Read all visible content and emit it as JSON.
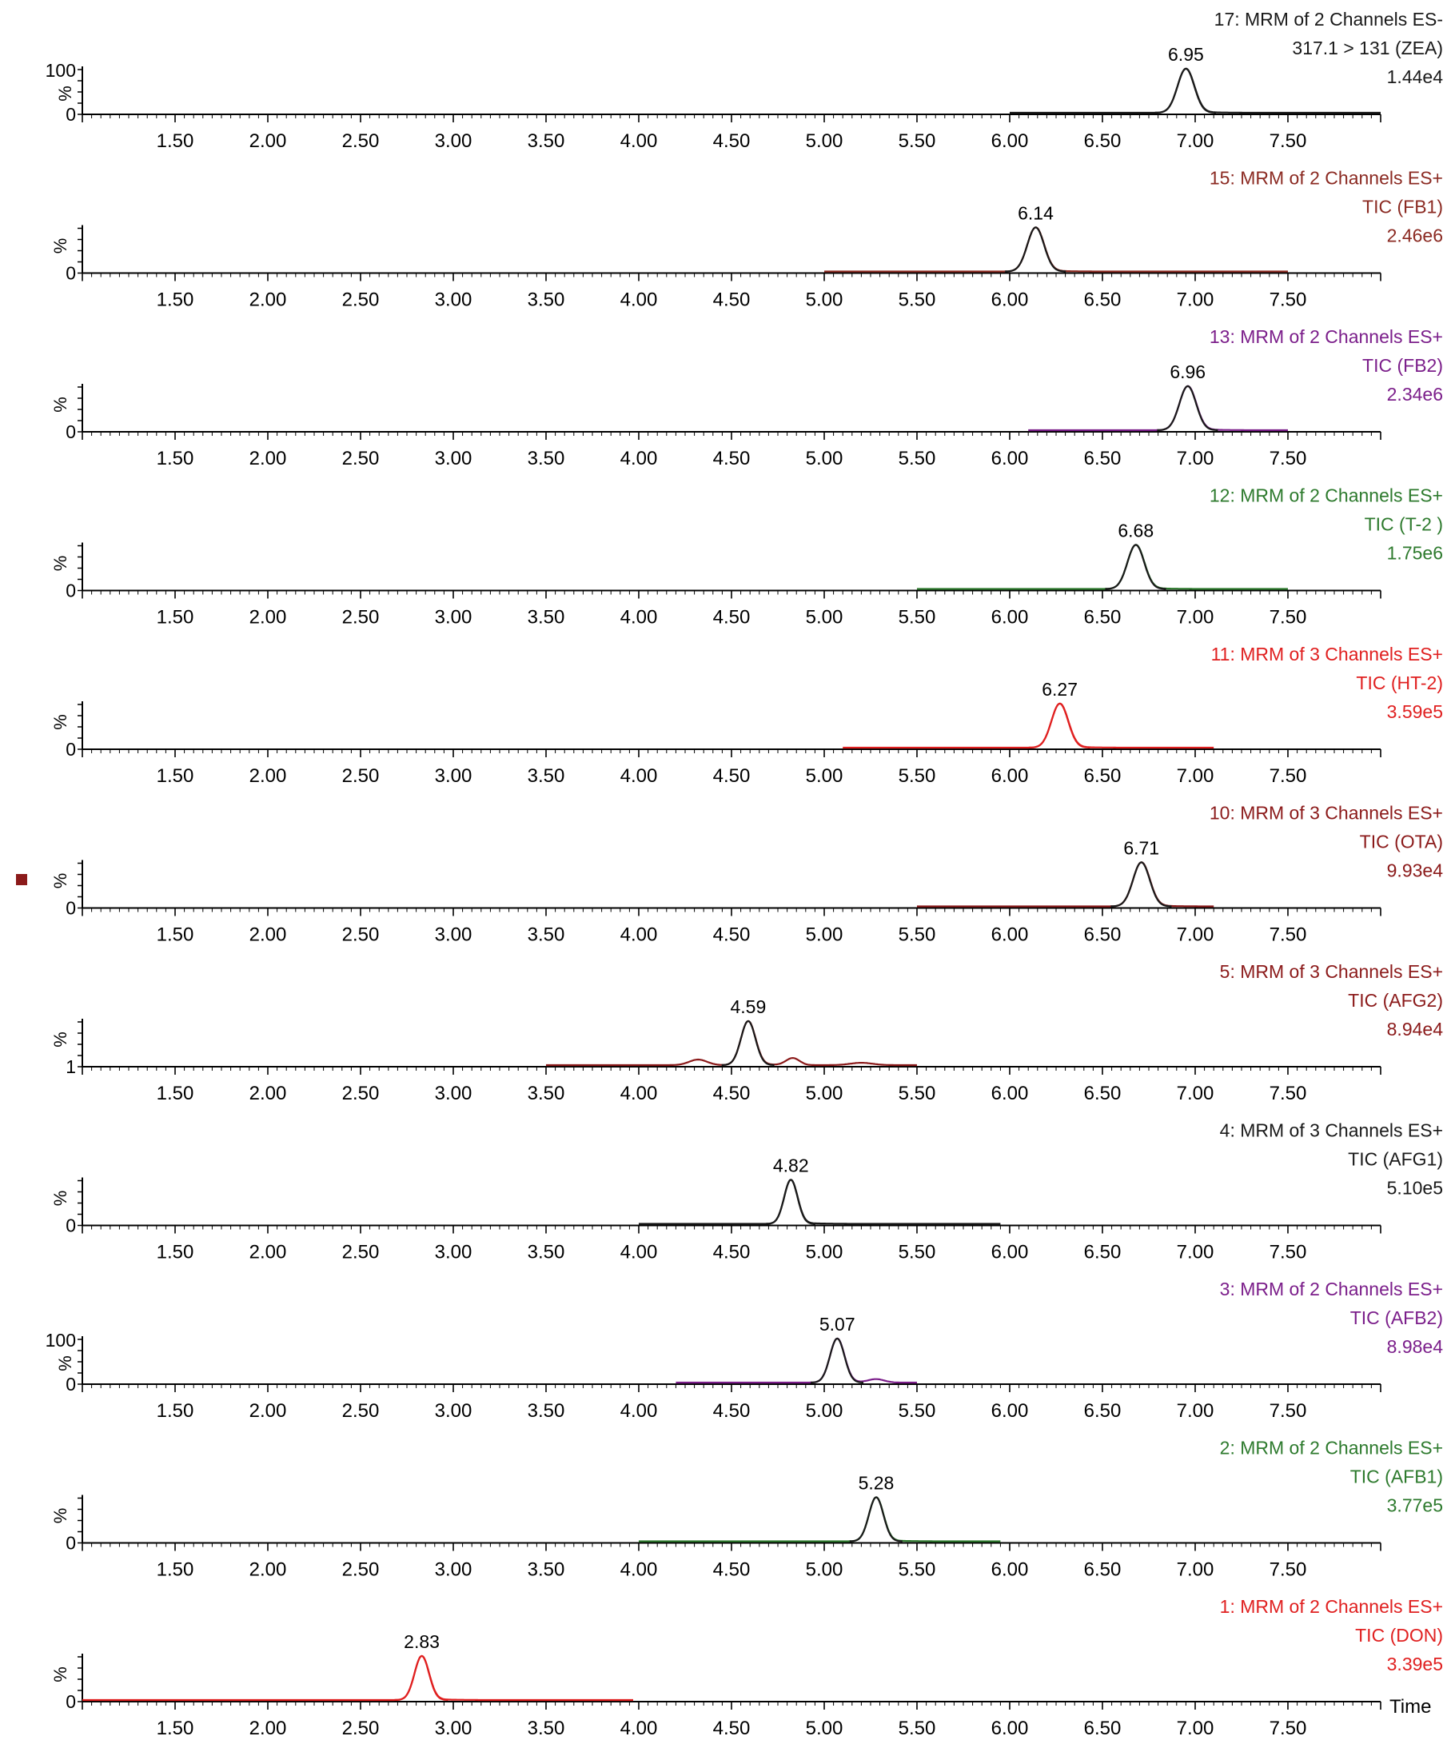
{
  "chart_data": {
    "type": "line",
    "x_axis": {
      "xlim": [
        1.0,
        8.0
      ],
      "ticks": [
        "1.50",
        "2.00",
        "2.50",
        "3.00",
        "3.50",
        "4.00",
        "4.50",
        "5.00",
        "5.50",
        "6.00",
        "6.50",
        "7.00",
        "7.50"
      ],
      "xlabel": "Time"
    },
    "ylabel": "%",
    "colors": {
      "axis": "#000000",
      "page_mark": "#8b1a1a"
    },
    "panels": [
      {
        "channel": "17: MRM of 2 Channels ES-",
        "transition": "317.1 > 131 (ZEA)",
        "intensity": "1.44e4",
        "color": "#1a1a1a",
        "y_ticks": [
          "100",
          "%",
          "0"
        ],
        "peak": {
          "rt": 6.95,
          "label": "6.95",
          "width": 0.075,
          "height": 0.95
        },
        "baseline": {
          "x": [
            6.0,
            8.0
          ],
          "color": "#1a1a1a"
        },
        "minor_peaks": []
      },
      {
        "channel": "15: MRM of 2 Channels ES+",
        "transition": "TIC (FB1)",
        "intensity": "2.46e6",
        "color": "#8b2a22",
        "y_ticks": [
          "%",
          "0"
        ],
        "peak": {
          "rt": 6.14,
          "label": "6.14",
          "width": 0.075,
          "height": 0.95
        },
        "baseline": {
          "x": [
            5.0,
            7.5
          ],
          "color": "#8b2a22"
        },
        "minor_peaks": []
      },
      {
        "channel": "13: MRM of 2 Channels ES+",
        "transition": "TIC (FB2)",
        "intensity": "2.34e6",
        "color": "#7b1e8a",
        "y_ticks": [
          "%",
          "0"
        ],
        "peak": {
          "rt": 6.96,
          "label": "6.96",
          "width": 0.075,
          "height": 0.95
        },
        "baseline": {
          "x": [
            6.1,
            7.5
          ],
          "color": "#7b1e8a"
        },
        "minor_peaks": []
      },
      {
        "channel": "12: MRM of 2 Channels ES+",
        "transition": "TIC (T-2 )",
        "intensity": "1.75e6",
        "color": "#2d7a2d",
        "y_ticks": [
          "%",
          "0"
        ],
        "peak": {
          "rt": 6.68,
          "label": "6.68",
          "width": 0.075,
          "height": 0.95
        },
        "baseline": {
          "x": [
            5.5,
            7.5
          ],
          "color": "#2d7a2d"
        },
        "minor_peaks": []
      },
      {
        "channel": "11: MRM of 3 Channels ES+",
        "transition": "TIC (HT-2)",
        "intensity": "3.59e5",
        "color": "#e02020",
        "y_ticks": [
          "%",
          "0"
        ],
        "peak": {
          "rt": 6.27,
          "label": "6.27",
          "width": 0.075,
          "height": 0.95
        },
        "baseline": {
          "x": [
            5.1,
            7.1
          ],
          "color": "#e02020"
        },
        "minor_peaks": []
      },
      {
        "channel": "10: MRM of 3 Channels ES+",
        "transition": "TIC (OTA)",
        "intensity": "9.93e4",
        "color": "#8b1a1a",
        "y_ticks": [
          "%",
          "0"
        ],
        "peak": {
          "rt": 6.71,
          "label": "6.71",
          "width": 0.075,
          "height": 0.95
        },
        "baseline": {
          "x": [
            5.5,
            7.1
          ],
          "color": "#8b1a1a"
        },
        "minor_peaks": []
      },
      {
        "channel": "5: MRM of 3 Channels ES+",
        "transition": "TIC (AFG2)",
        "intensity": "8.94e4",
        "color": "#8b1a1a",
        "y_ticks": [
          "%",
          "1"
        ],
        "peak": {
          "rt": 4.59,
          "label": "4.59",
          "width": 0.065,
          "height": 0.95
        },
        "baseline": {
          "x": [
            3.5,
            5.5
          ],
          "color": "#8b1a1a"
        },
        "minor_peaks": [
          {
            "rt": 4.32,
            "width": 0.08,
            "height": 0.12
          },
          {
            "rt": 4.83,
            "width": 0.06,
            "height": 0.15
          },
          {
            "rt": 5.2,
            "width": 0.1,
            "height": 0.05
          }
        ]
      },
      {
        "channel": "4: MRM of 3 Channels ES+",
        "transition": "TIC (AFG1)",
        "intensity": "5.10e5",
        "color": "#1a1a1a",
        "y_ticks": [
          "%",
          "0"
        ],
        "peak": {
          "rt": 4.82,
          "label": "4.82",
          "width": 0.06,
          "height": 0.95
        },
        "baseline": {
          "x": [
            4.0,
            5.95
          ],
          "color": "#1a1a1a"
        },
        "minor_peaks": []
      },
      {
        "channel": "3: MRM of 2 Channels ES+",
        "transition": "TIC (AFB2)",
        "intensity": "8.98e4",
        "color": "#7b1e8a",
        "y_ticks": [
          "100",
          "%",
          "0"
        ],
        "peak": {
          "rt": 5.07,
          "label": "5.07",
          "width": 0.065,
          "height": 0.95
        },
        "baseline": {
          "x": [
            4.2,
            5.5
          ],
          "color": "#7b1e8a"
        },
        "minor_peaks": [
          {
            "rt": 5.28,
            "width": 0.07,
            "height": 0.07
          }
        ]
      },
      {
        "channel": "2: MRM of 2 Channels ES+",
        "transition": "TIC (AFB1)",
        "intensity": "3.77e5",
        "color": "#2d7a2d",
        "y_ticks": [
          "%",
          "0"
        ],
        "peak": {
          "rt": 5.28,
          "label": "5.28",
          "width": 0.065,
          "height": 0.95
        },
        "baseline": {
          "x": [
            4.0,
            5.95
          ],
          "color": "#2d7a2d"
        },
        "minor_peaks": []
      },
      {
        "channel": "1: MRM of 2 Channels ES+",
        "transition": "TIC (DON)",
        "intensity": "3.39e5",
        "color": "#e02020",
        "y_ticks": [
          "%",
          "0"
        ],
        "peak": {
          "rt": 2.83,
          "label": "2.83",
          "width": 0.065,
          "height": 0.95
        },
        "baseline": {
          "x": [
            1.0,
            3.97
          ],
          "color": "#e02020"
        },
        "minor_peaks": []
      }
    ]
  }
}
